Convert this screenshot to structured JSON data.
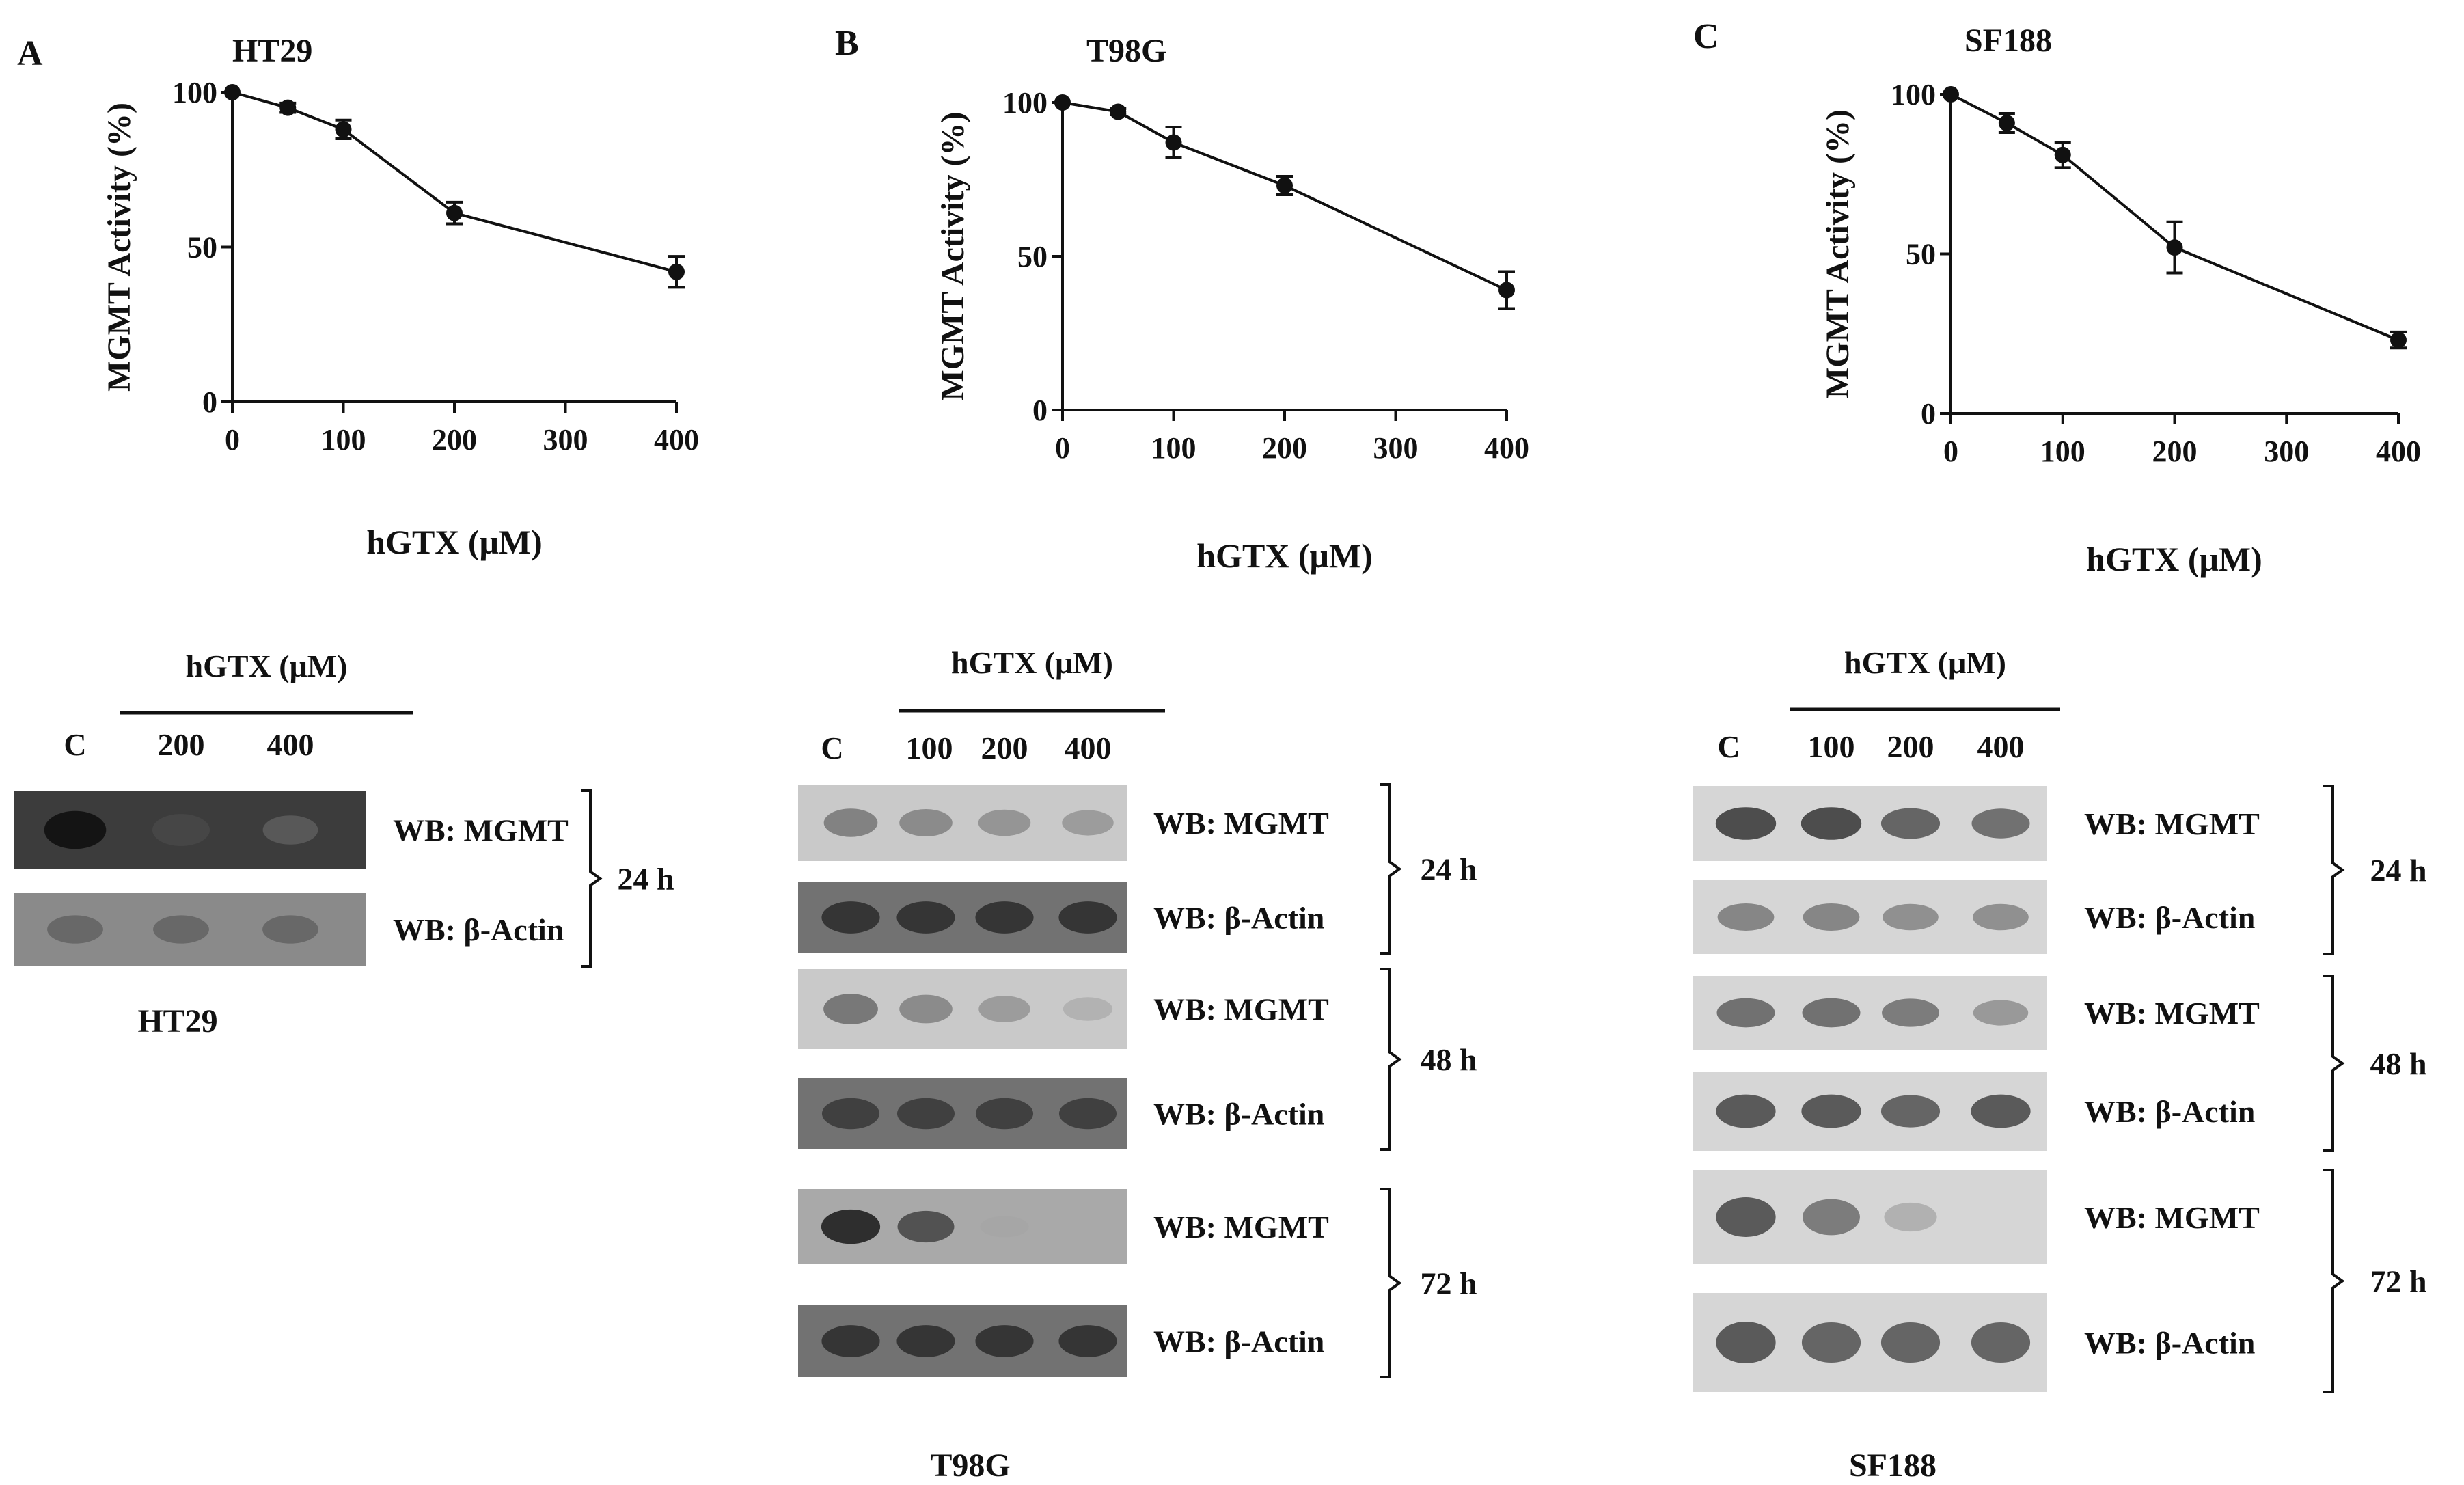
{
  "figure": {
    "panels": [
      {
        "letter": "A",
        "cell_line": "HT29",
        "ylabel": "MGMT Activity (%)",
        "xlabel": "hGTX (μM)",
        "blot": {
          "header": "hGTX (μM)",
          "control_label": "C",
          "lane_labels": [
            "200",
            "400"
          ],
          "rows": [
            "WB: MGMT",
            "WB: β-Actin"
          ],
          "times": [
            "24 h"
          ],
          "caption": "HT29",
          "mgmt_intensity": [
            [
              1.0,
              0.7,
              0.55
            ]
          ],
          "actin_intensity": [
            [
              0.6,
              0.6,
              0.6
            ]
          ]
        }
      },
      {
        "letter": "B",
        "cell_line": "T98G",
        "ylabel": "MGMT Activity (%)",
        "xlabel": "hGTX (μM)",
        "blot": {
          "header": "hGTX (μM)",
          "control_label": "C",
          "lane_labels": [
            "100",
            "200",
            "400"
          ],
          "rows": [
            "WB: MGMT",
            "WB: β-Actin"
          ],
          "times": [
            "24 h",
            "48 h",
            "72 h"
          ],
          "caption": "T98G",
          "mgmt_intensity": [
            [
              0.55,
              0.5,
              0.45,
              0.4
            ],
            [
              0.6,
              0.5,
              0.4,
              0.25
            ],
            [
              0.9,
              0.75,
              0.2,
              0.0
            ]
          ],
          "actin_intensity": [
            [
              0.85,
              0.85,
              0.85,
              0.85
            ],
            [
              0.8,
              0.8,
              0.8,
              0.8
            ],
            [
              0.85,
              0.85,
              0.85,
              0.85
            ]
          ]
        }
      },
      {
        "letter": "C",
        "cell_line": "SF188",
        "ylabel": "MGMT Activity (%)",
        "xlabel": "hGTX (μM)",
        "blot": {
          "header": "hGTX (μM)",
          "control_label": "C",
          "lane_labels": [
            "100",
            "200",
            "400"
          ],
          "rows": [
            "WB: MGMT",
            "WB: β-Actin"
          ],
          "times": [
            "24 h",
            "48 h",
            "72 h"
          ],
          "caption": "SF188",
          "mgmt_intensity": [
            [
              0.8,
              0.8,
              0.7,
              0.65
            ],
            [
              0.65,
              0.65,
              0.6,
              0.45
            ],
            [
              0.75,
              0.6,
              0.3,
              0.0
            ]
          ],
          "actin_intensity": [
            [
              0.55,
              0.55,
              0.5,
              0.5
            ],
            [
              0.75,
              0.75,
              0.7,
              0.75
            ],
            [
              0.75,
              0.7,
              0.7,
              0.7
            ]
          ]
        }
      }
    ]
  },
  "chart_data": [
    {
      "type": "line",
      "title": "HT29",
      "xlabel": "hGTX (μM)",
      "ylabel": "MGMT Activity (%)",
      "x": [
        0,
        50,
        100,
        200,
        400
      ],
      "y": [
        100,
        95,
        88,
        61,
        42
      ],
      "error": [
        0,
        1.5,
        3,
        3.5,
        5
      ],
      "xticks": [
        0,
        100,
        200,
        300,
        400
      ],
      "yticks": [
        0,
        50,
        100
      ],
      "xlim": [
        0,
        400
      ],
      "ylim": [
        0,
        100
      ]
    },
    {
      "type": "line",
      "title": "T98G",
      "xlabel": "hGTX (μM)",
      "ylabel": "MGMT Activity (%)",
      "x": [
        0,
        50,
        100,
        200,
        400
      ],
      "y": [
        100,
        97,
        87,
        73,
        39
      ],
      "error": [
        0,
        1,
        5,
        3,
        6
      ],
      "xticks": [
        0,
        100,
        200,
        300,
        400
      ],
      "yticks": [
        0,
        50,
        100
      ],
      "xlim": [
        0,
        400
      ],
      "ylim": [
        0,
        100
      ]
    },
    {
      "type": "line",
      "title": "SF188",
      "xlabel": "hGTX (μM)",
      "ylabel": "MGMT Activity (%)",
      "x": [
        0,
        50,
        100,
        200,
        400
      ],
      "y": [
        100,
        91,
        81,
        52,
        23
      ],
      "error": [
        0,
        3,
        4,
        8,
        2.5
      ],
      "xticks": [
        0,
        100,
        200,
        300,
        400
      ],
      "yticks": [
        0,
        50,
        100
      ],
      "xlim": [
        0,
        400
      ],
      "ylim": [
        0,
        100
      ]
    }
  ]
}
